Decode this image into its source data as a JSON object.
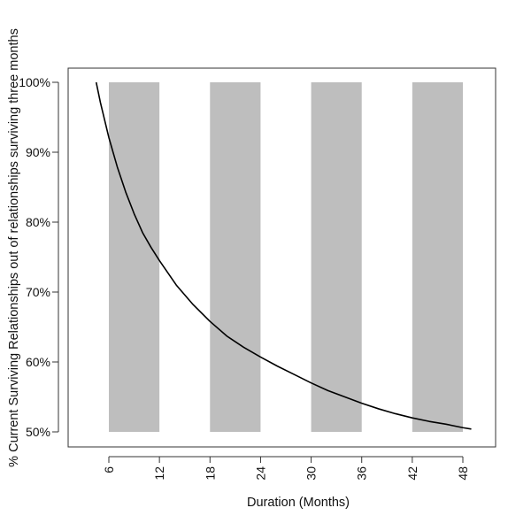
{
  "chart_data": {
    "type": "line",
    "title": "",
    "xlabel": "Duration (Months)",
    "ylabel": "% Current Surviving Relationships out of relationships surviving three months",
    "xlim": [
      3,
      50
    ],
    "ylim": [
      48,
      102
    ],
    "x_ticks": [
      6,
      12,
      18,
      24,
      30,
      36,
      42,
      48
    ],
    "y_ticks": [
      50,
      60,
      70,
      80,
      90,
      100
    ],
    "y_tick_labels": [
      "50%",
      "60%",
      "70%",
      "80%",
      "90%",
      "100%"
    ],
    "shaded_bands": [
      {
        "x0": 6,
        "x1": 12,
        "y0": 50,
        "y1": 100
      },
      {
        "x0": 18,
        "x1": 24,
        "y0": 50,
        "y1": 100
      },
      {
        "x0": 30,
        "x1": 36,
        "y0": 50,
        "y1": 100
      },
      {
        "x0": 42,
        "x1": 48,
        "y0": 50,
        "y1": 100
      }
    ],
    "band_color": "#bebebe",
    "line_color": "#000000",
    "grid": false,
    "series": [
      {
        "x": [
          4.5,
          5,
          5.5,
          6,
          7,
          8,
          9,
          10,
          11,
          12,
          14,
          16,
          18,
          20,
          22,
          24,
          26,
          28,
          30,
          32,
          34,
          36,
          38,
          40,
          42,
          44,
          46,
          48,
          49
        ],
        "values": [
          100,
          97.1,
          94.6,
          92.1,
          87.9,
          84.3,
          81.2,
          78.5,
          76.4,
          74.5,
          71.0,
          68.2,
          65.8,
          63.7,
          62.1,
          60.7,
          59.4,
          58.2,
          57.0,
          55.9,
          55.0,
          54.1,
          53.3,
          52.6,
          52.0,
          51.5,
          51.1,
          50.6,
          50.4
        ]
      }
    ]
  }
}
